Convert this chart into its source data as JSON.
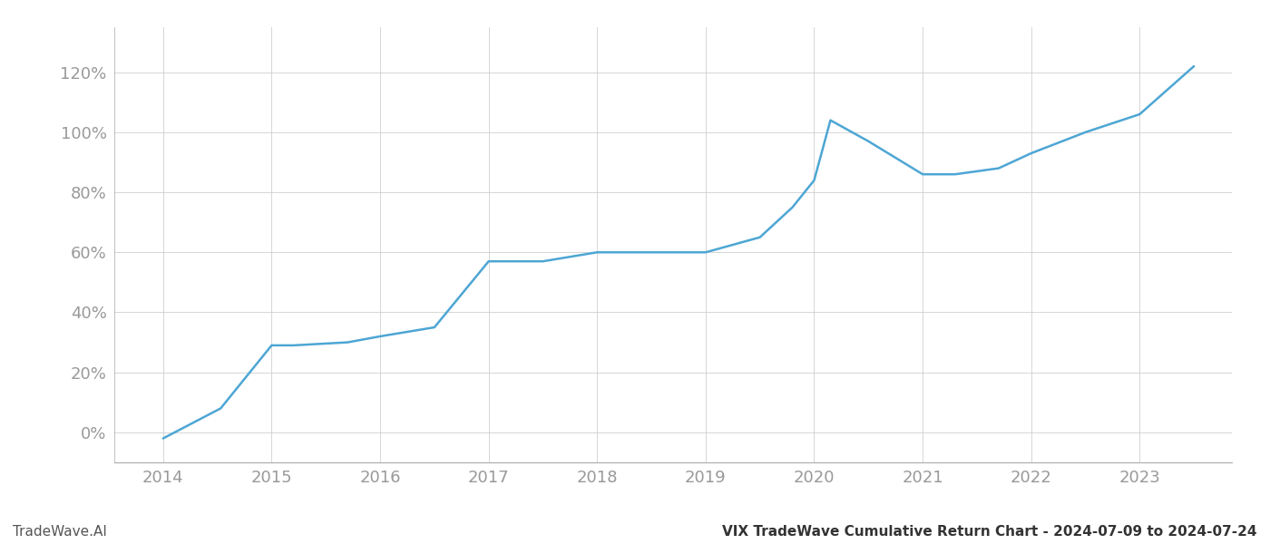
{
  "footer_left": "TradeWave.AI",
  "footer_right": "VIX TradeWave Cumulative Return Chart - 2024-07-09 to 2024-07-24",
  "line_color": "#4da6d4",
  "background_color": "#ffffff",
  "grid_color": "#cccccc",
  "x_values": [
    2014.0,
    2014.53,
    2015.0,
    2015.2,
    2015.7,
    2016.0,
    2016.5,
    2017.0,
    2017.5,
    2018.0,
    2018.3,
    2019.0,
    2019.5,
    2019.8,
    2020.0,
    2020.15,
    2020.5,
    2021.0,
    2021.3,
    2021.7,
    2022.0,
    2022.5,
    2023.0,
    2023.5
  ],
  "y_values": [
    -2,
    8,
    29,
    29,
    30,
    32,
    35,
    57,
    57,
    60,
    60,
    60,
    65,
    75,
    84,
    104,
    97,
    86,
    86,
    88,
    93,
    100,
    106,
    122
  ],
  "xlim": [
    2013.55,
    2023.85
  ],
  "ylim": [
    -10,
    135
  ],
  "yticks": [
    0,
    20,
    40,
    60,
    80,
    100,
    120
  ],
  "xticks": [
    2014,
    2015,
    2016,
    2017,
    2018,
    2019,
    2020,
    2021,
    2022,
    2023
  ],
  "line_width": 1.8,
  "tick_label_color": "#999999",
  "footer_left_color": "#555555",
  "footer_right_color": "#333333",
  "footer_font_size": 11,
  "tick_font_size": 13,
  "left_spine_color": "#aaaaaa",
  "bottom_spine_color": "#aaaaaa"
}
